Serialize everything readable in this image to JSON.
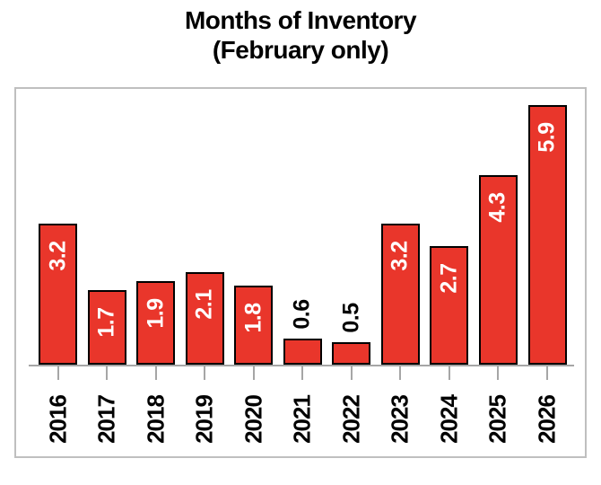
{
  "title": {
    "line1": "Months of Inventory",
    "line2": "(February only)"
  },
  "chart_data": {
    "type": "bar",
    "title": "Months of Inventory (February only)",
    "categories": [
      "2016",
      "2017",
      "2018",
      "2019",
      "2020",
      "2021",
      "2022",
      "2023",
      "2024",
      "2025",
      "2026"
    ],
    "values": [
      3.2,
      1.7,
      1.9,
      2.1,
      1.8,
      0.6,
      0.5,
      3.2,
      2.7,
      4.3,
      5.9
    ],
    "value_labels": [
      "3.2",
      "1.7",
      "1.9",
      "2.1",
      "1.8",
      "0.6",
      "0.5",
      "3.2",
      "2.7",
      "4.3",
      "5.9"
    ],
    "xlabel": "",
    "ylabel": "",
    "ylim": [
      0,
      6.4
    ],
    "grid": false,
    "legend_position": "none",
    "bar_color": "#e9362b",
    "bar_border_color": "#000000",
    "value_label_color_inside": "#ffffff",
    "value_label_color_outside": "#000000",
    "axis_color": "#a6a6a6",
    "tick_color": "#a6a6a6",
    "plot_border_color": "#bfbfbf",
    "title_color": "#000000",
    "category_label_color": "#000000",
    "labels_rotated_degrees": -90
  }
}
